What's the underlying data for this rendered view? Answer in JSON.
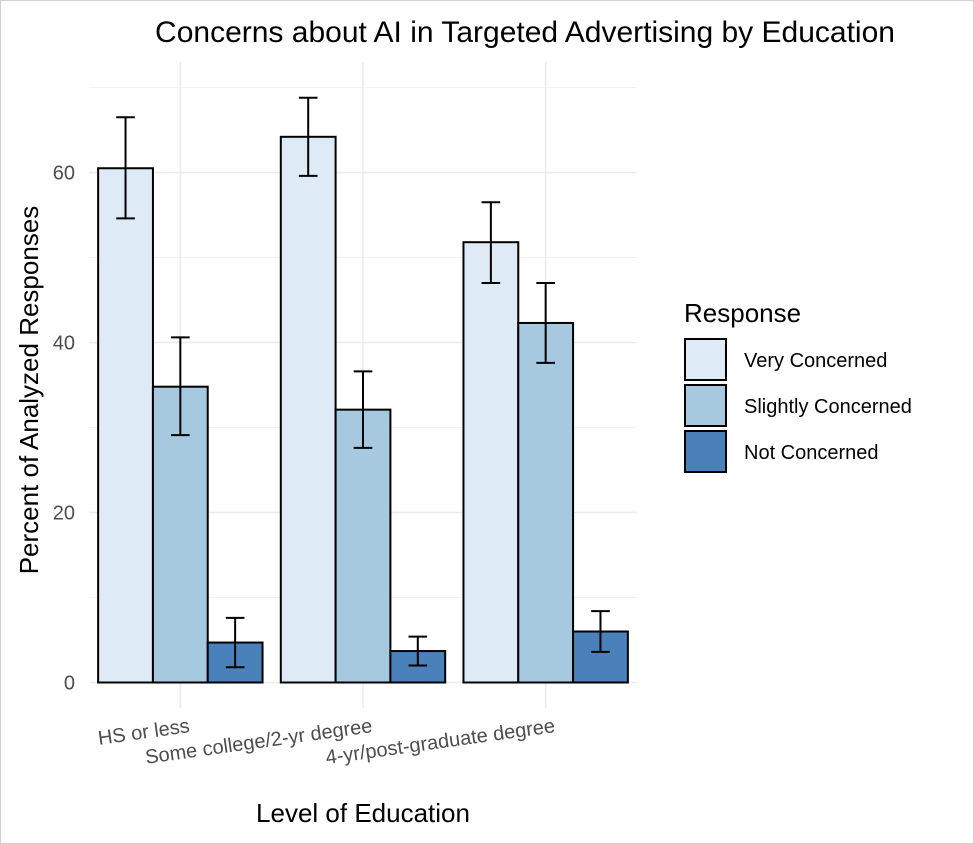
{
  "chart_data": {
    "type": "bar",
    "title": "Concerns about AI in Targeted Advertising by Education",
    "xlabel": "Level of Education",
    "ylabel": "Percent of Analyzed Responses",
    "categories": [
      "HS or less",
      "Some college/2-yr degree",
      "4-yr/post-graduate degree"
    ],
    "series": [
      {
        "name": "Very Concerned",
        "color": "#deebf7",
        "values": [
          60.5,
          64.2,
          51.8
        ],
        "err_low": [
          54.6,
          59.6,
          47.0
        ],
        "err_high": [
          66.5,
          68.8,
          56.5
        ]
      },
      {
        "name": "Slightly Concerned",
        "color": "#a6c9e0",
        "values": [
          34.8,
          32.1,
          42.3
        ],
        "err_low": [
          29.1,
          27.6,
          37.6
        ],
        "err_high": [
          40.6,
          36.6,
          47.0
        ]
      },
      {
        "name": "Not Concerned",
        "color": "#4a81ba",
        "values": [
          4.7,
          3.7,
          6.0
        ],
        "err_low": [
          1.8,
          2.0,
          3.6
        ],
        "err_high": [
          7.6,
          5.4,
          8.4
        ]
      }
    ],
    "yticks": [
      0,
      20,
      40,
      60
    ],
    "ylim": [
      -3,
      73
    ],
    "legend_title": "Response",
    "legend_position": "right",
    "grid": true
  }
}
